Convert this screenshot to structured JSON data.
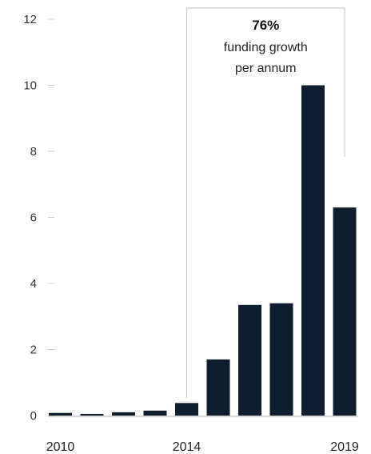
{
  "chart_data": {
    "type": "bar",
    "categories": [
      "2010",
      "2011",
      "2012",
      "2013",
      "2014",
      "2015",
      "2016",
      "2017",
      "2018",
      "2019"
    ],
    "values": [
      0.08,
      0.05,
      0.1,
      0.15,
      0.38,
      1.7,
      3.35,
      3.4,
      10.0,
      6.3
    ],
    "x_tick_labels": [
      "2010",
      "2014",
      "2019"
    ],
    "y_ticks": [
      0,
      2,
      4,
      6,
      8,
      10,
      12
    ],
    "ylim": [
      0,
      12
    ],
    "grid": false,
    "bar_color": "#0e1e2e",
    "axis_color": "#c8c8c8",
    "annotation": {
      "value": "76%",
      "line1": "funding growth",
      "line2": "per annum",
      "range": [
        "2014",
        "2019"
      ]
    }
  }
}
